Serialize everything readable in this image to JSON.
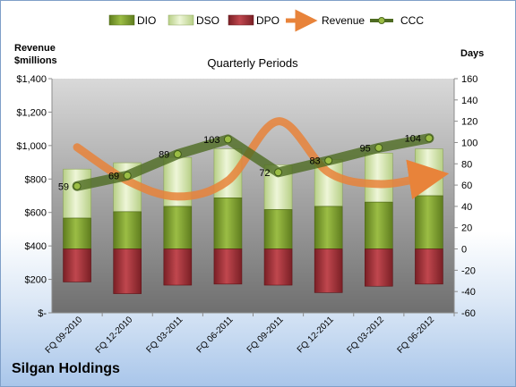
{
  "company": "Silgan Holdings",
  "chart_data": {
    "type": "bar",
    "title": "Quarterly Periods",
    "left_axis_label": [
      "Revenue",
      "$millions"
    ],
    "right_axis_label": "Days",
    "categories": [
      "FQ 09-2010",
      "FQ 12-2010",
      "FQ 03-2011",
      "FQ 06-2011",
      "FQ 09-2011",
      "FQ 12-2011",
      "FQ 03-2012",
      "FQ 06-2012"
    ],
    "left_axis": {
      "min": 0,
      "max": 1400,
      "step": 200,
      "tick_labels": [
        "$-",
        "$200",
        "$400",
        "$600",
        "$800",
        "$1,000",
        "$1,200",
        "$1,400"
      ]
    },
    "right_axis": {
      "min": -60,
      "max": 160,
      "step": 20
    },
    "legend_position": "top",
    "grid": false,
    "series": [
      {
        "name": "DIO",
        "kind": "stacked-bar",
        "axis": "right",
        "color": "#7a9a2e",
        "values": [
          29,
          35,
          40,
          48,
          37,
          40,
          44,
          50
        ]
      },
      {
        "name": "DSO",
        "kind": "stacked-bar",
        "axis": "right",
        "color": "#d6e8b0",
        "values": [
          46,
          46,
          46,
          46,
          42,
          44,
          46,
          44
        ]
      },
      {
        "name": "DPO",
        "kind": "stacked-bar",
        "axis": "right",
        "color": "#9e2e34",
        "values": [
          -31,
          -42,
          -34,
          -33,
          -34,
          -41,
          -35,
          -33
        ]
      },
      {
        "name": "Revenue",
        "kind": "smooth-line",
        "axis": "left",
        "color": "#e8833a",
        "values": [
          990,
          790,
          695,
          790,
          1145,
          840,
          770,
          815
        ]
      },
      {
        "name": "CCC",
        "kind": "line",
        "axis": "right",
        "color": "#4e6b22",
        "values": [
          59,
          69,
          89,
          103,
          72,
          83,
          95,
          104
        ]
      }
    ]
  }
}
